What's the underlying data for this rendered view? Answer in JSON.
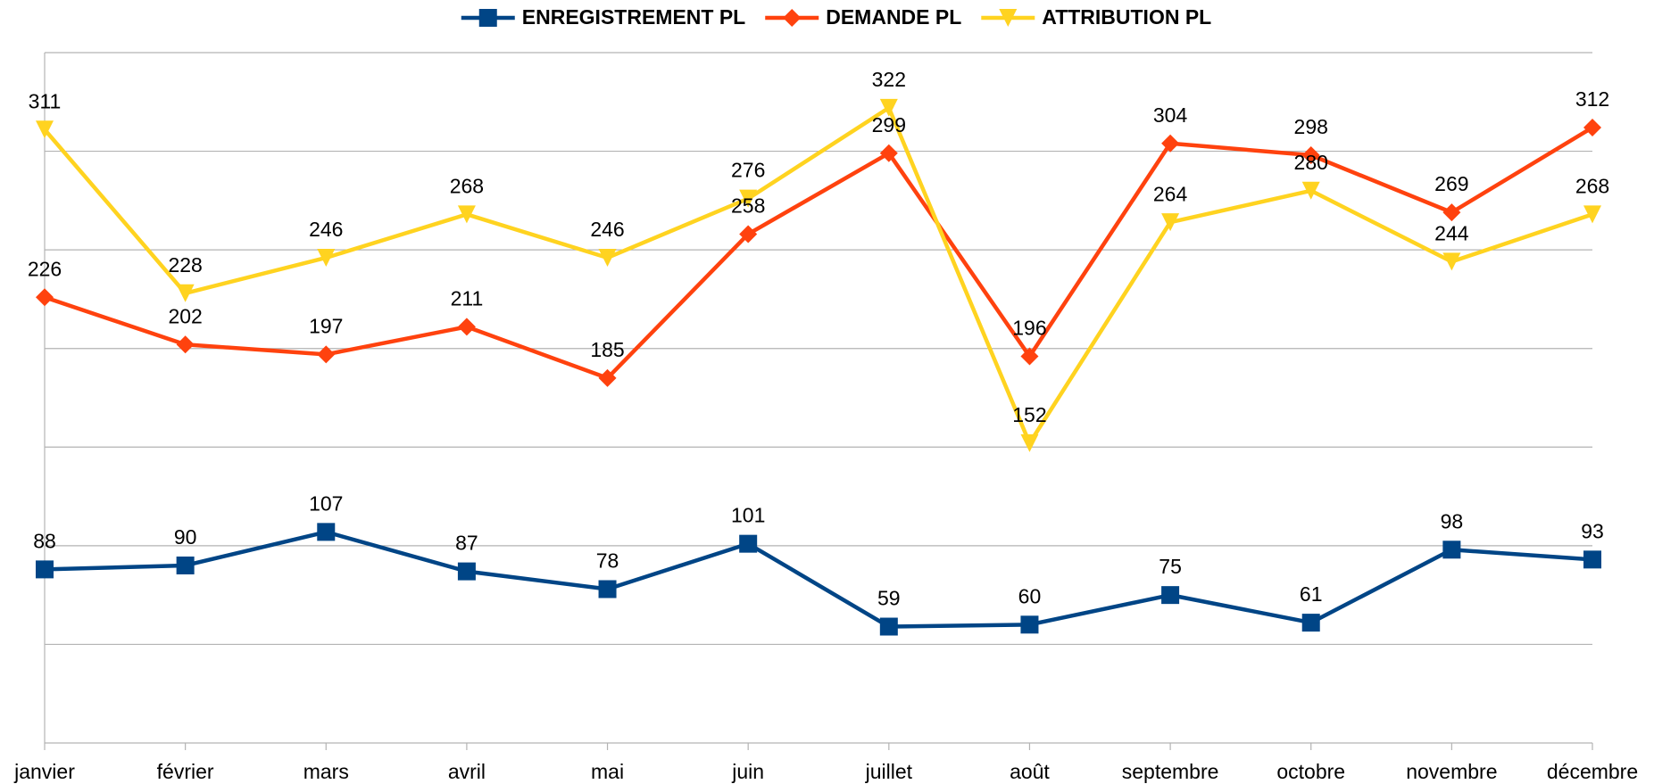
{
  "chart_data": {
    "type": "line",
    "categories": [
      "janvier",
      "février",
      "mars",
      "avril",
      "mai",
      "juin",
      "juillet",
      "août",
      "septembre",
      "octobre",
      "novembre",
      "décembre"
    ],
    "series": [
      {
        "name": "ENREGISTREMENT PL",
        "color": "#004586",
        "marker": "square",
        "values": [
          88,
          90,
          107,
          87,
          78,
          101,
          59,
          60,
          75,
          61,
          98,
          93
        ]
      },
      {
        "name": "DEMANDE PL",
        "color": "#ff420e",
        "marker": "diamond",
        "values": [
          226,
          202,
          197,
          211,
          185,
          258,
          299,
          196,
          304,
          298,
          269,
          312
        ]
      },
      {
        "name": "ATTRIBUTION PL",
        "color": "#ffd320",
        "marker": "triangle-down",
        "values": [
          311,
          228,
          246,
          268,
          246,
          276,
          322,
          152,
          264,
          280,
          244,
          268
        ]
      }
    ],
    "ylim": [
      0,
      350
    ],
    "yticks": [
      0,
      50,
      100,
      150,
      200,
      250,
      300,
      350
    ],
    "grid": true,
    "legend": "top"
  }
}
